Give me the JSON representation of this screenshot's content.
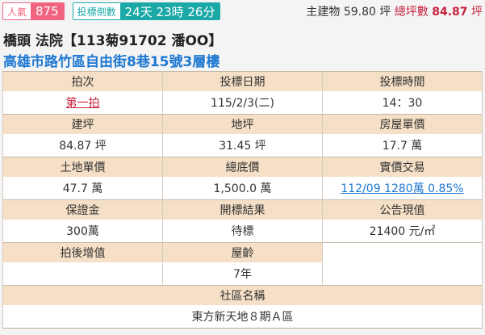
{
  "badges": {
    "popularity_label": "人氣",
    "popularity_value": "875",
    "countdown_label": "投標倒數",
    "countdown_value": "24天 23時 26分"
  },
  "area": {
    "main_label": "主建物",
    "main_value": "59.80 坪",
    "total_label": "總坪數",
    "total_value": "84.87",
    "total_unit": "坪"
  },
  "title": "橋頭 法院【113菊91702 潘OO】",
  "address": "高雄市路竹區自由街8巷15號3層樓",
  "table": {
    "auction_round_label": "拍次",
    "auction_round": "第一拍",
    "bid_date_label": "投標日期",
    "bid_date": "115/2/3(二)",
    "bid_time_label": "投標時間",
    "bid_time": "14：30",
    "building_area_label": "建坪",
    "building_area": "84.87 坪",
    "land_area_label": "地坪",
    "land_area": "31.45 坪",
    "house_unit_price_label": "房屋單價",
    "house_unit_price": "17.7 萬",
    "land_unit_price_label": "土地單價",
    "land_unit_price": "47.7 萬",
    "reserve_price_label": "總底價",
    "reserve_price": "1,500.0 萬",
    "actual_trade_label": "實價交易",
    "actual_trade": "112/09 1280萬 0.85%",
    "deposit_label": "保證金",
    "deposit": "300萬",
    "result_label": "開標結果",
    "result": "待標",
    "announced_value_label": "公告現值",
    "announced_value": "21400 元/㎡",
    "post_auction_value_label": "拍後增值",
    "post_auction_value": "",
    "house_age_label": "屋齡",
    "house_age": "7年",
    "community_label": "社區名稱",
    "community": "東方新天地８期Ａ區"
  }
}
